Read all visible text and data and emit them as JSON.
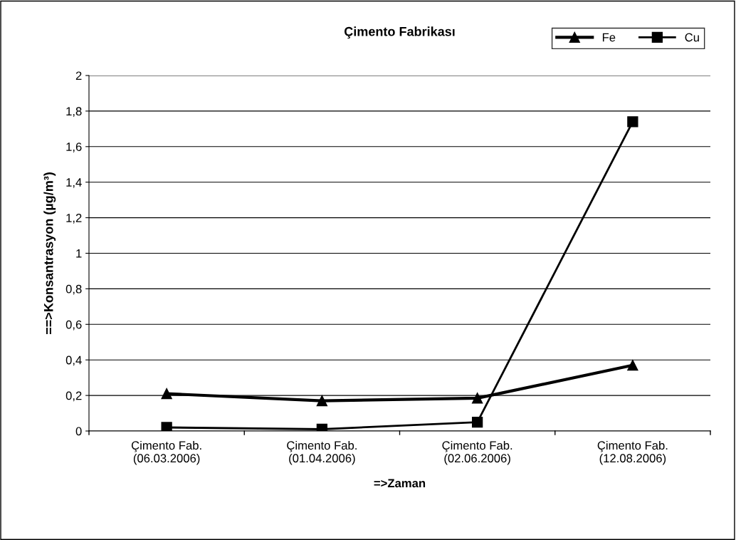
{
  "chart_data": {
    "type": "line",
    "title": "Çimento Fabrikası",
    "xlabel": "=>Zaman",
    "ylabel": "==>Konsantrasyon (µg/m³)",
    "categories": [
      "Çimento Fab.\n(06.03.2006)",
      "Çimento Fab.\n(01.04.2006)",
      "Çimento Fab.\n(02.06.2006)",
      "Çimento Fab.\n(12.08.2006)"
    ],
    "series": [
      {
        "name": "Fe",
        "color": "#000000",
        "marker": "triangle",
        "values": [
          0.21,
          0.17,
          0.185,
          0.37
        ]
      },
      {
        "name": "Cu",
        "color": "#000000",
        "marker": "square",
        "values": [
          0.02,
          0.01,
          0.05,
          1.74
        ]
      }
    ],
    "ylim": [
      0,
      2
    ],
    "yticks": [
      0,
      {
        "value": 0.2,
        "label": "0,2"
      },
      {
        "value": 0.4,
        "label": "0,4"
      },
      {
        "value": 0.6,
        "label": "0,6"
      },
      {
        "value": 0.8,
        "label": "0,8"
      },
      1,
      {
        "value": 1.2,
        "label": "1,2"
      },
      {
        "value": 1.4,
        "label": "1,4"
      },
      {
        "value": 1.6,
        "label": "1,6"
      },
      {
        "value": 1.8,
        "label": "1,8"
      },
      2
    ],
    "grid": "y",
    "legend": "top right",
    "line_style": "solid"
  }
}
